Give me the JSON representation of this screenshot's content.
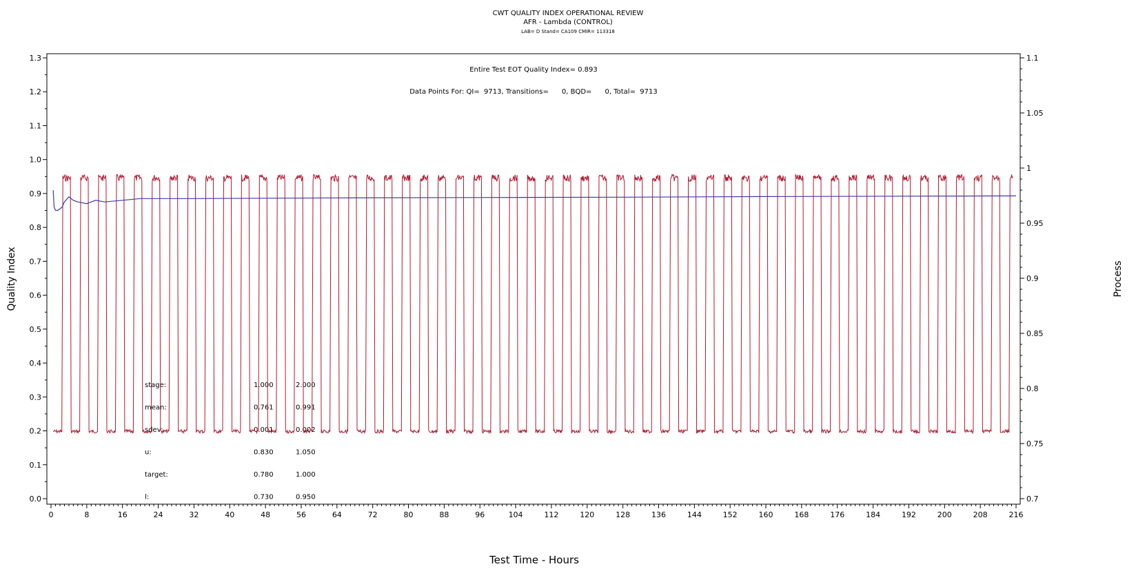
{
  "header": {
    "title": "CWT QUALITY INDEX OPERATIONAL REVIEW",
    "subtitle": "AFR - Lambda (CONTROL)",
    "info": "LAB= D Stand= CA109 CMIR= 113318"
  },
  "annotations": {
    "eot": "Entire Test EOT Quality Index=   0.893",
    "points": "Data Points For: QI=  9713, Transitions=      0, BQD=      0, Total=  9713"
  },
  "stats_table": [
    {
      "label": "stage:",
      "v1": "1.000",
      "v2": "2.000"
    },
    {
      "label": "mean:",
      "v1": "0.761",
      "v2": "0.991"
    },
    {
      "label": "sdev:",
      "v1": "0.001",
      "v2": "0.002"
    },
    {
      "label": "u:",
      "v1": "0.830",
      "v2": "1.050"
    },
    {
      "label": "target:",
      "v1": "0.780",
      "v2": "1.000"
    },
    {
      "label": "l:",
      "v1": "0.730",
      "v2": "0.950"
    }
  ],
  "chart_data": {
    "type": "line",
    "xlabel": "Test Time - Hours",
    "ylabel": "Quality Index",
    "y2label": "Process",
    "xlim": [
      0,
      216
    ],
    "ylim": [
      0,
      1.3
    ],
    "y2lim": [
      0.7,
      1.1
    ],
    "x_ticks": [
      0,
      8,
      16,
      24,
      32,
      40,
      48,
      56,
      64,
      72,
      80,
      88,
      96,
      104,
      112,
      120,
      128,
      136,
      144,
      152,
      160,
      168,
      176,
      184,
      192,
      200,
      208,
      216
    ],
    "y_ticks": [
      0.0,
      0.1,
      0.2,
      0.3,
      0.4,
      0.5,
      0.6,
      0.7,
      0.8,
      0.9,
      1.0,
      1.1,
      1.2,
      1.3
    ],
    "y2_ticks": [
      0.7,
      0.75,
      0.8,
      0.85,
      0.9,
      0.95,
      1,
      1.05,
      1.1
    ],
    "y_tick_labels": [
      "0.0",
      "0.1",
      "0.2",
      "0.3",
      "0.4",
      "0.5",
      "0.6",
      "0.7",
      "0.8",
      "0.9",
      "1.0",
      "1.1",
      "1.2",
      "1.3"
    ],
    "y2_tick_labels": [
      "0.7",
      "0.75",
      "0.8",
      "0.85",
      "0.9",
      "0.95",
      "1",
      "1.05",
      "1.1"
    ],
    "grid": false,
    "legend": "none",
    "series": [
      {
        "axis": "right",
        "color": "#b0182e",
        "pattern": "square wave alternating between stage 1 (about 0.76) and stage 2 (about 0.99)",
        "cycle_hours": 4,
        "high_value": 0.991,
        "low_value": 0.761,
        "start": 0.5,
        "end": 215.5
      },
      {
        "axis": "left",
        "color": "#3a3aa8",
        "x": [
          0.5,
          0.7,
          1,
          1.5,
          2,
          2.5,
          3,
          4,
          5,
          6,
          8,
          10,
          12,
          16,
          20,
          24,
          32,
          48,
          64,
          96,
          128,
          160,
          216
        ],
        "y": [
          0.91,
          0.86,
          0.85,
          0.85,
          0.855,
          0.86,
          0.875,
          0.89,
          0.88,
          0.875,
          0.87,
          0.88,
          0.875,
          0.88,
          0.885,
          0.885,
          0.885,
          0.886,
          0.887,
          0.888,
          0.889,
          0.891,
          0.893
        ]
      }
    ]
  }
}
